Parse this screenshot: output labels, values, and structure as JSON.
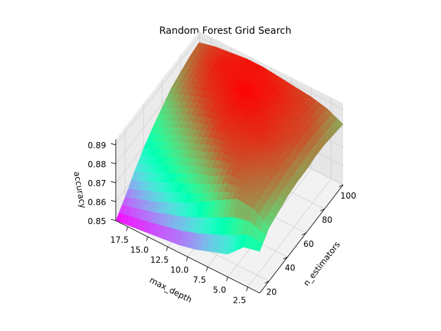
{
  "chart_data": {
    "type": "surface",
    "title": "Random Forest Grid Search",
    "x_label": "n_estimators",
    "y_label": "max_depth",
    "z_label": "accuracy",
    "x_ticks": [
      20,
      40,
      60,
      80,
      100
    ],
    "y_ticks": [
      2.5,
      5.0,
      7.5,
      10.0,
      12.5,
      15.0,
      17.5
    ],
    "z_ticks": [
      0.85,
      0.86,
      0.87,
      0.88,
      0.89
    ],
    "x_tick_labels": [
      "20",
      "40",
      "60",
      "80",
      "100"
    ],
    "y_tick_labels": [
      "2.5",
      "5.0",
      "7.5",
      "10.0",
      "12.5",
      "15.0",
      "17.5"
    ],
    "z_tick_labels": [
      "0.85",
      "0.86",
      "0.87",
      "0.88",
      "0.89"
    ],
    "x_range": [
      10,
      100
    ],
    "y_range": [
      1,
      19
    ],
    "z_range": [
      0.85,
      0.893
    ],
    "colormap": "rainbow",
    "grid": true,
    "surface": {
      "x": [
        10,
        20,
        30,
        40,
        50,
        60,
        70,
        80,
        90,
        100
      ],
      "y": [
        1,
        3,
        5,
        7,
        9,
        11,
        13,
        15,
        17,
        19
      ],
      "z": [
        [
          0.872,
          0.878,
          0.88,
          0.882,
          0.883,
          0.883,
          0.884,
          0.884,
          0.883,
          0.882
        ],
        [
          0.87,
          0.884,
          0.885,
          0.886,
          0.887,
          0.887,
          0.888,
          0.888,
          0.887,
          0.886
        ],
        [
          0.862,
          0.885,
          0.886,
          0.887,
          0.888,
          0.889,
          0.889,
          0.889,
          0.889,
          0.888
        ],
        [
          0.859,
          0.88,
          0.887,
          0.888,
          0.889,
          0.89,
          0.89,
          0.89,
          0.89,
          0.889
        ],
        [
          0.856,
          0.875,
          0.882,
          0.888,
          0.889,
          0.89,
          0.891,
          0.891,
          0.891,
          0.89
        ],
        [
          0.854,
          0.87,
          0.879,
          0.884,
          0.889,
          0.89,
          0.891,
          0.892,
          0.891,
          0.891
        ],
        [
          0.853,
          0.866,
          0.875,
          0.881,
          0.885,
          0.889,
          0.89,
          0.891,
          0.891,
          0.891
        ],
        [
          0.852,
          0.862,
          0.871,
          0.877,
          0.882,
          0.886,
          0.889,
          0.89,
          0.891,
          0.89
        ],
        [
          0.851,
          0.859,
          0.867,
          0.873,
          0.878,
          0.882,
          0.886,
          0.888,
          0.889,
          0.889
        ],
        [
          0.85,
          0.856,
          0.863,
          0.869,
          0.874,
          0.878,
          0.882,
          0.884,
          0.886,
          0.887
        ]
      ]
    }
  }
}
